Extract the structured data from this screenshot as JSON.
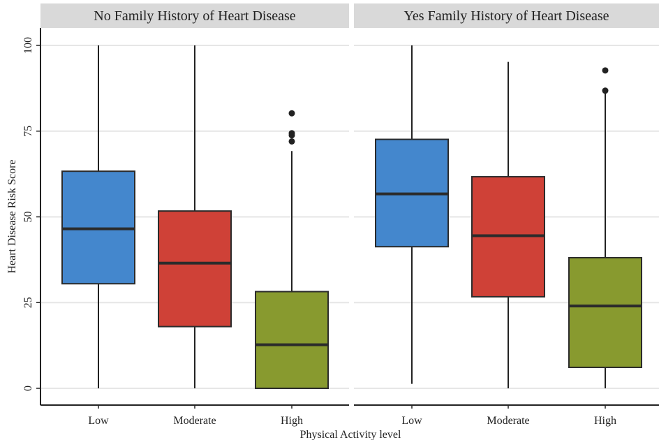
{
  "chart_data": {
    "type": "boxplot",
    "xlabel": "Physical Activity level",
    "ylabel": "Heart Disease Risk Score",
    "ylim": [
      0,
      100
    ],
    "yticks": [
      0,
      25,
      50,
      75,
      100
    ],
    "categories": [
      "Low",
      "Moderate",
      "High"
    ],
    "colors": {
      "Low": "#4487cd",
      "Moderate": "#cf4137",
      "High": "#889a2f"
    },
    "panels": [
      {
        "title": "No Family History of Heart Disease",
        "boxes": [
          {
            "category": "Low",
            "whisker_low": 0,
            "q1": 30.5,
            "median": 46.5,
            "q3": 63.3,
            "whisker_high": 100,
            "outliers": []
          },
          {
            "category": "Moderate",
            "whisker_low": 0,
            "q1": 18,
            "median": 36.5,
            "q3": 51.7,
            "whisker_high": 100,
            "outliers": []
          },
          {
            "category": "High",
            "whisker_low": 0,
            "q1": 0,
            "median": 12.7,
            "q3": 28.2,
            "whisker_high": 69.2,
            "outliers": [
              72,
              73.8,
              74.4,
              80.2
            ]
          }
        ]
      },
      {
        "title": "Yes Family History of Heart Disease",
        "boxes": [
          {
            "category": "Low",
            "whisker_low": 1.3,
            "q1": 41.3,
            "median": 56.7,
            "q3": 72.6,
            "whisker_high": 100,
            "outliers": []
          },
          {
            "category": "Moderate",
            "whisker_low": 0,
            "q1": 26.7,
            "median": 44.5,
            "q3": 61.7,
            "whisker_high": 95.2,
            "outliers": []
          },
          {
            "category": "High",
            "whisker_low": 0,
            "q1": 6.1,
            "median": 24,
            "q3": 38.1,
            "whisker_high": 86.1,
            "outliers": [
              86.8,
              92.7
            ]
          }
        ]
      }
    ],
    "grid": true
  }
}
